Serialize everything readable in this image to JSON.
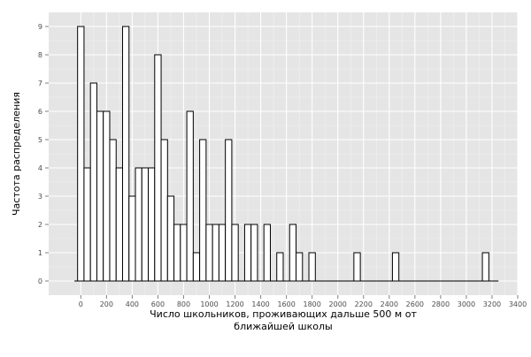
{
  "chart_data": {
    "type": "bar",
    "xlabel_lines": [
      "Число школьников, проживающих дальше 500 м от",
      "ближайшей школы"
    ],
    "ylabel": "Частота распределения",
    "binwidth": 50,
    "xlim": [
      -250,
      3400
    ],
    "ylim": [
      -0.5,
      9.5
    ],
    "xticks": [
      0,
      200,
      400,
      600,
      800,
      1000,
      1200,
      1400,
      1600,
      1800,
      2000,
      2200,
      2400,
      2600,
      2800,
      3000,
      3200,
      3400
    ],
    "yticks": [
      0,
      1,
      2,
      3,
      4,
      5,
      6,
      7,
      8,
      9
    ],
    "baseline_range": [
      -50,
      3250
    ],
    "bins": [
      {
        "start": 0,
        "count": 9
      },
      {
        "start": 50,
        "count": 4
      },
      {
        "start": 100,
        "count": 7
      },
      {
        "start": 150,
        "count": 6
      },
      {
        "start": 200,
        "count": 6
      },
      {
        "start": 250,
        "count": 5
      },
      {
        "start": 300,
        "count": 4
      },
      {
        "start": 350,
        "count": 9
      },
      {
        "start": 400,
        "count": 3
      },
      {
        "start": 450,
        "count": 4
      },
      {
        "start": 500,
        "count": 4
      },
      {
        "start": 550,
        "count": 4
      },
      {
        "start": 600,
        "count": 8
      },
      {
        "start": 650,
        "count": 5
      },
      {
        "start": 700,
        "count": 3
      },
      {
        "start": 750,
        "count": 2
      },
      {
        "start": 800,
        "count": 2
      },
      {
        "start": 850,
        "count": 6
      },
      {
        "start": 900,
        "count": 1
      },
      {
        "start": 950,
        "count": 5
      },
      {
        "start": 1000,
        "count": 2
      },
      {
        "start": 1050,
        "count": 2
      },
      {
        "start": 1100,
        "count": 2
      },
      {
        "start": 1150,
        "count": 5
      },
      {
        "start": 1200,
        "count": 2
      },
      {
        "start": 1250,
        "count": 0
      },
      {
        "start": 1300,
        "count": 2
      },
      {
        "start": 1350,
        "count": 2
      },
      {
        "start": 1400,
        "count": 0
      },
      {
        "start": 1450,
        "count": 2
      },
      {
        "start": 1500,
        "count": 0
      },
      {
        "start": 1550,
        "count": 1
      },
      {
        "start": 1600,
        "count": 0
      },
      {
        "start": 1650,
        "count": 2
      },
      {
        "start": 1700,
        "count": 1
      },
      {
        "start": 1750,
        "count": 0
      },
      {
        "start": 1800,
        "count": 1
      },
      {
        "start": 2150,
        "count": 1
      },
      {
        "start": 2450,
        "count": 1
      },
      {
        "start": 3150,
        "count": 1
      }
    ],
    "grid": true,
    "colors": {
      "panel_background": "#e5e5e5",
      "grid_major": "#ffffff",
      "grid_minor": "#f2f2f2",
      "bar_fill": "#ffffff",
      "bar_stroke": "#000000",
      "tick_color": "#7f7f7f",
      "tick_label_color": "#4d4d4d"
    }
  }
}
